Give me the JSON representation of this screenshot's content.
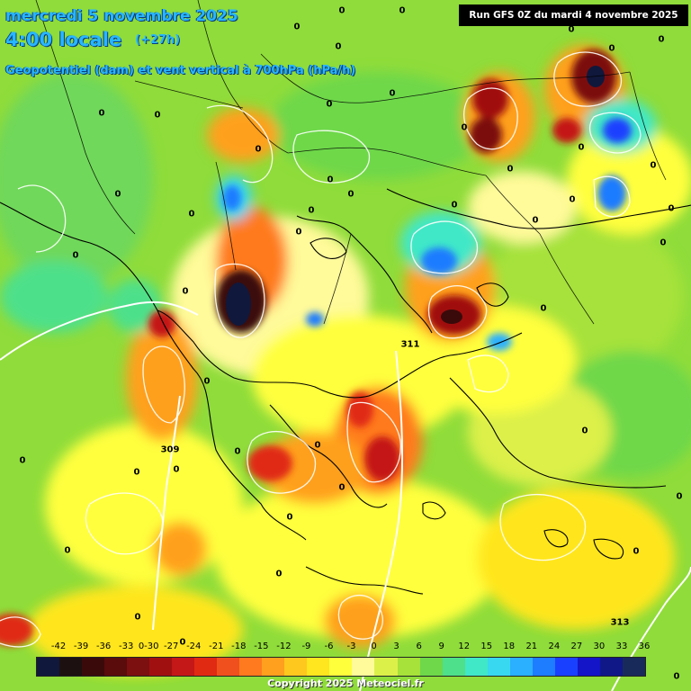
{
  "title": {
    "date": "mercredi 5 novembre 2025",
    "time": "4:00 locale",
    "offset": "(+27h)",
    "parameter": "Geopotentiel (dam) et vent vertical à 700hPa (hPa/h)"
  },
  "run_info": "Run GFS 0Z du mardi 4 novembre 2025",
  "copyright": "Copyright 2025 Meteociel.fr",
  "contour_labels": [
    "0",
    "309",
    "311",
    "313"
  ],
  "legend": {
    "ticks": [
      "-42",
      "-39",
      "-36",
      "-33",
      "0-30",
      "-27",
      "-24",
      "-21",
      "-18",
      "-15",
      "-12",
      "-9",
      "-6",
      "-3",
      "0",
      "3",
      "6",
      "9",
      "12",
      "15",
      "18",
      "21",
      "24",
      "27",
      "30",
      "33",
      "36"
    ],
    "colors": [
      "#10183c",
      "#1c1010",
      "#3a0a0a",
      "#5a0b0b",
      "#7c0f0f",
      "#a01010",
      "#c41717",
      "#e02a12",
      "#f0501e",
      "#ff7a1e",
      "#ffa01e",
      "#ffc81e",
      "#ffe61e",
      "#ffff3c",
      "#fffa9a",
      "#dcf04a",
      "#a6e23a",
      "#6ed84a",
      "#4ee08a",
      "#40e8c8",
      "#38d8f0",
      "#2ab0ff",
      "#1e7cff",
      "#1a40ff",
      "#1414c8",
      "#101888",
      "#182a5a"
    ]
  },
  "colors": {
    "background_green": "#8fdc3a",
    "title_blue": "#27b6ff",
    "contour_white": "#ffffff"
  }
}
